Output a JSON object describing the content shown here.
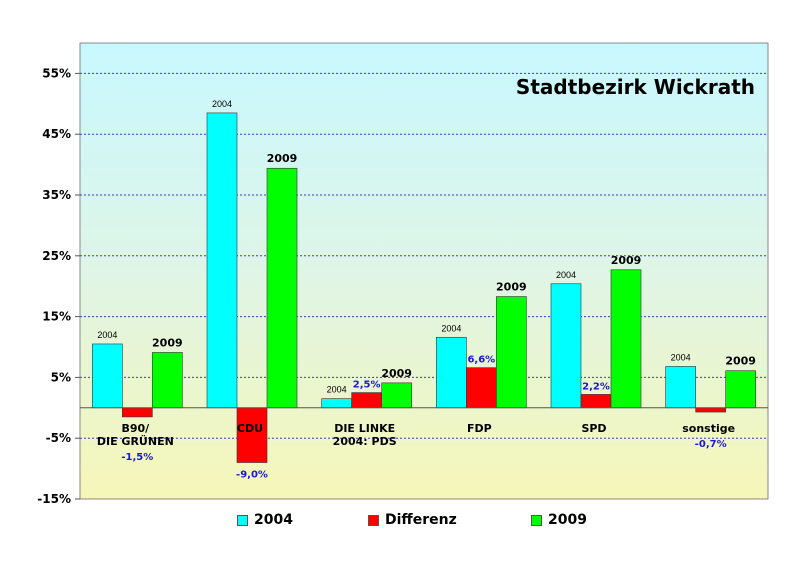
{
  "chart_data": {
    "type": "bar",
    "title": "Stadtbezirk Wickrath",
    "ylim": [
      -15,
      60
    ],
    "yticks": [
      55,
      45,
      35,
      25,
      15,
      5,
      -5,
      -15
    ],
    "ytick_labels": [
      "55%",
      "45%",
      "35%",
      "25%",
      "15%",
      "5%",
      "-5%",
      "-15%"
    ],
    "grid": true,
    "legend_position": "bottom",
    "categories": [
      {
        "label_lines": [
          "B90/",
          "DIE GRÜNEN"
        ]
      },
      {
        "label_lines": [
          "CDU"
        ]
      },
      {
        "label_lines": [
          "DIE LINKE",
          "2004: PDS"
        ]
      },
      {
        "label_lines": [
          "FDP"
        ]
      },
      {
        "label_lines": [
          "SPD"
        ]
      },
      {
        "label_lines": [
          "sonstige"
        ]
      }
    ],
    "series": [
      {
        "name": "2004",
        "color": "#00ffff",
        "values": [
          10.5,
          48.5,
          1.5,
          11.6,
          20.4,
          6.8
        ],
        "bar_labels": [
          "2004",
          "2004",
          "2004",
          "2004",
          "2004",
          "2004"
        ]
      },
      {
        "name": "Differenz",
        "color": "#ff0000",
        "values": [
          -1.5,
          -9.0,
          2.5,
          6.6,
          2.2,
          -0.7
        ],
        "bar_labels": [
          "-1,5%",
          "-9,0%",
          "2,5%",
          "6,6%",
          "2,2%",
          "-0,7%"
        ]
      },
      {
        "name": "2009",
        "color": "#00ff00",
        "values": [
          9.1,
          39.4,
          4.1,
          18.3,
          22.7,
          6.1
        ],
        "bar_labels": [
          "2009",
          "2009",
          "2009",
          "2009",
          "2009",
          "2009"
        ]
      }
    ]
  }
}
